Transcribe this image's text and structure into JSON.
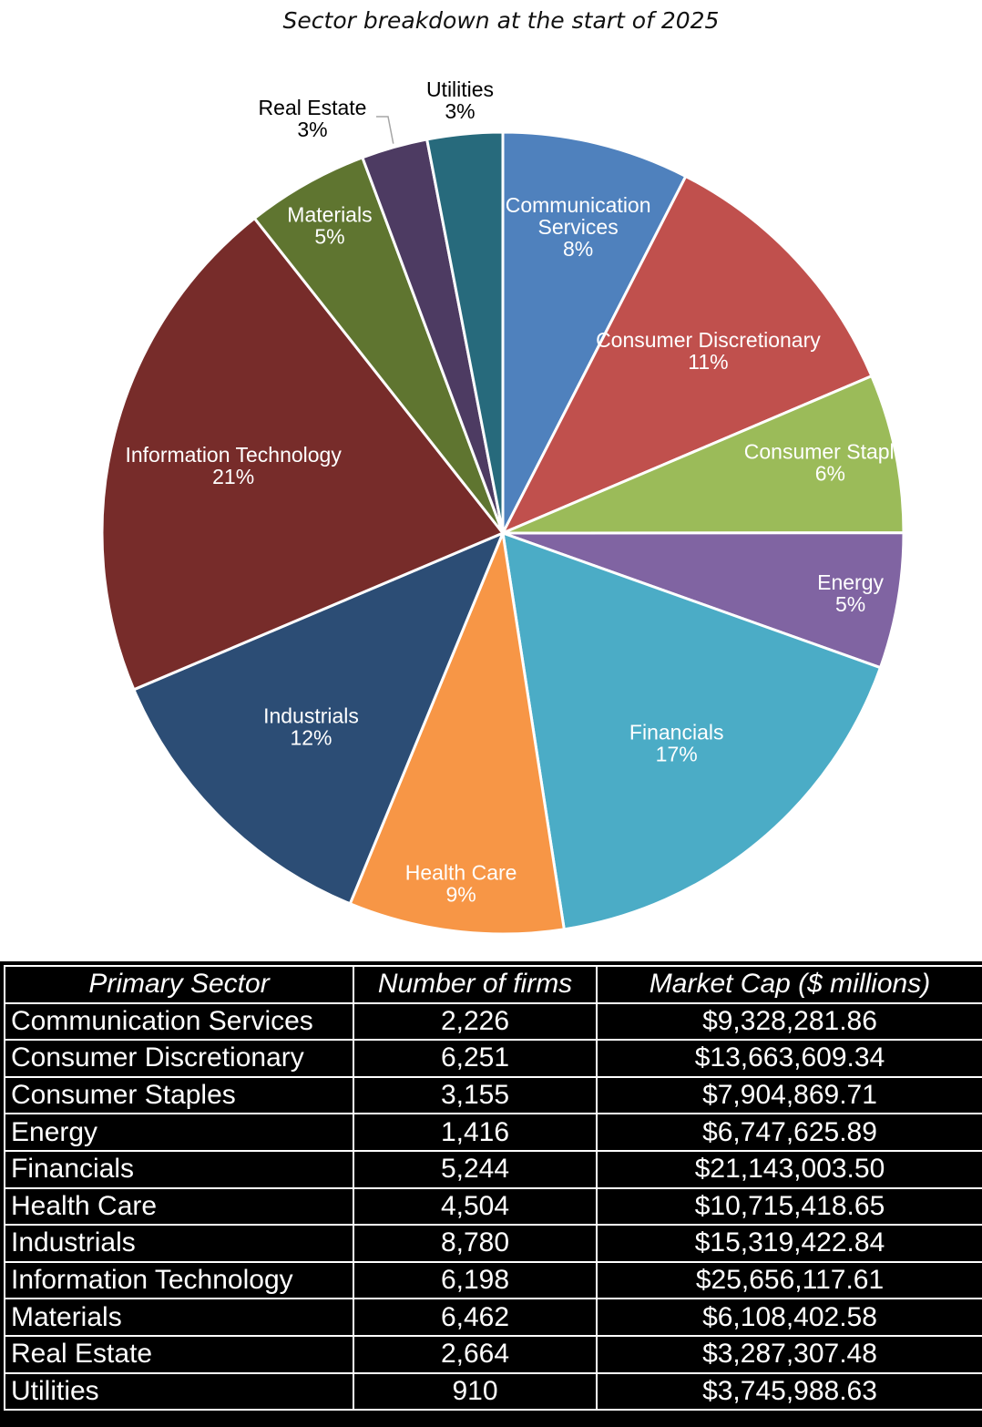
{
  "chart_data": {
    "type": "pie",
    "title": "Sector breakdown at the start of 2025",
    "slices": [
      {
        "name": "Communication Services",
        "label_lines": [
          "Communication",
          "Services"
        ],
        "pct_label": "8%",
        "value": 7.56,
        "color": "#4f81bd"
      },
      {
        "name": "Consumer Discretionary",
        "label_lines": [
          "Consumer Discretionary"
        ],
        "pct_label": "11%",
        "value": 11.08,
        "color": "#c0504d"
      },
      {
        "name": "Consumer Staples",
        "label_lines": [
          "Consumer Staples"
        ],
        "pct_label": "6%",
        "value": 6.41,
        "color": "#9bbb59"
      },
      {
        "name": "Energy",
        "label_lines": [
          "Energy"
        ],
        "pct_label": "5%",
        "value": 5.47,
        "color": "#8064a2"
      },
      {
        "name": "Financials",
        "label_lines": [
          "Financials"
        ],
        "pct_label": "17%",
        "value": 17.15,
        "color": "#4bacc6"
      },
      {
        "name": "Health Care",
        "label_lines": [
          "Health Care"
        ],
        "pct_label": "9%",
        "value": 8.69,
        "color": "#f79646"
      },
      {
        "name": "Industrials",
        "label_lines": [
          "Industrials"
        ],
        "pct_label": "12%",
        "value": 12.42,
        "color": "#2c4d75"
      },
      {
        "name": "Information Technology",
        "label_lines": [
          "Information Technology"
        ],
        "pct_label": "21%",
        "value": 20.8,
        "color": "#772c2a"
      },
      {
        "name": "Materials",
        "label_lines": [
          "Materials"
        ],
        "pct_label": "5%",
        "value": 4.95,
        "color": "#5f7530"
      },
      {
        "name": "Real Estate",
        "label_lines": [
          "Real Estate"
        ],
        "pct_label": "3%",
        "value": 2.67,
        "color": "#4d3b62"
      },
      {
        "name": "Utilities",
        "label_lines": [
          "Utilities"
        ],
        "pct_label": "3%",
        "value": 3.04,
        "color": "#276a7c"
      }
    ],
    "table": {
      "headers": [
        "Primary Sector",
        "Number of firms",
        "Market Cap ($ millions)"
      ],
      "rows": [
        [
          "Communication Services",
          "2,226",
          "$9,328,281.86"
        ],
        [
          "Consumer Discretionary",
          "6,251",
          "$13,663,609.34"
        ],
        [
          "Consumer Staples",
          "3,155",
          "$7,904,869.71"
        ],
        [
          "Energy",
          "1,416",
          "$6,747,625.89"
        ],
        [
          "Financials",
          "5,244",
          "$21,143,003.50"
        ],
        [
          "Health Care",
          "4,504",
          "$10,715,418.65"
        ],
        [
          "Industrials",
          "8,780",
          "$15,319,422.84"
        ],
        [
          "Information Technology",
          "6,198",
          "$25,656,117.61"
        ],
        [
          "Materials",
          "6,462",
          "$6,108,402.58"
        ],
        [
          "Real Estate",
          "2,664",
          "$3,287,307.48"
        ],
        [
          "Utilities",
          "910",
          "$3,745,988.63"
        ]
      ]
    }
  }
}
